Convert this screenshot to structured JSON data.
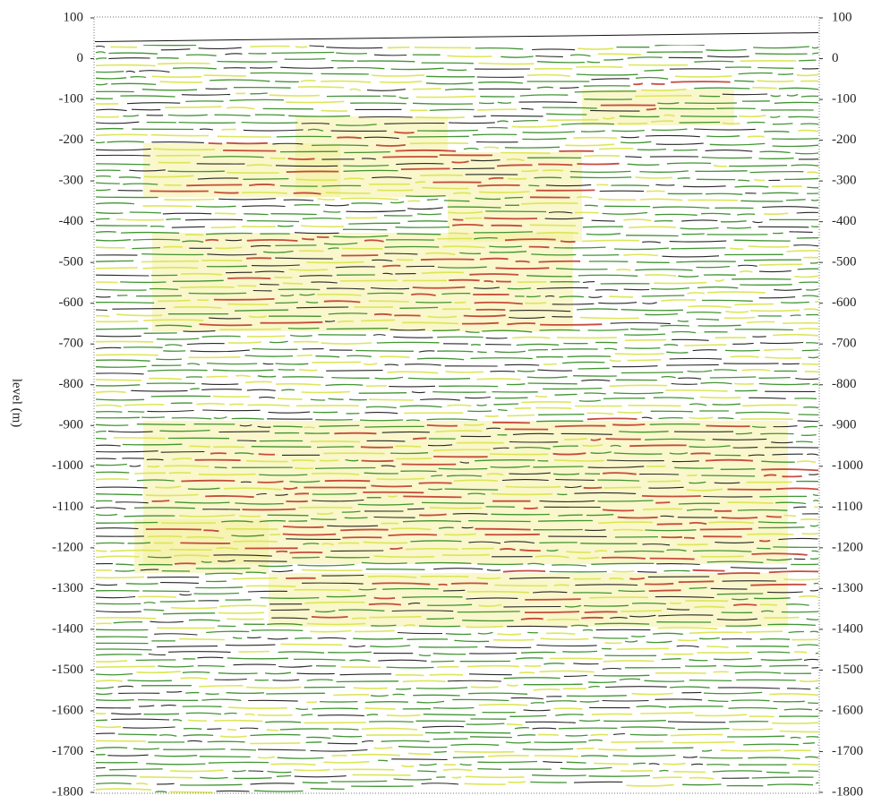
{
  "chart_data": {
    "type": "seismic-section",
    "ylabel": "level (m)",
    "ylim": [
      -1800,
      100
    ],
    "yticks": [
      100,
      0,
      -100,
      -200,
      -300,
      -400,
      -500,
      -600,
      -700,
      -800,
      -900,
      -1000,
      -1100,
      -1200,
      -1300,
      -1400,
      -1500,
      -1600,
      -1700,
      -1800
    ],
    "right_axis": true,
    "grid": false
  }
}
